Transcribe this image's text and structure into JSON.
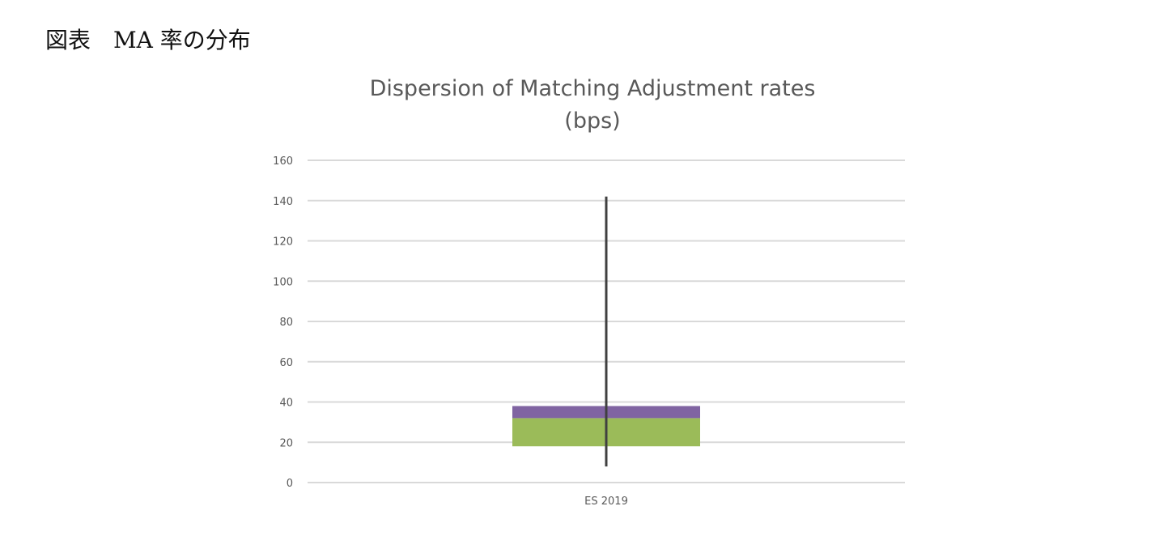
{
  "caption": "図表　MA 率の分布",
  "chart_data": {
    "type": "box",
    "title_line1": "Dispersion of Matching Adjustment rates",
    "title_line2": "(bps)",
    "categories": [
      "ES 2019"
    ],
    "ylim": [
      0,
      160
    ],
    "yticks": [
      0,
      20,
      40,
      60,
      80,
      100,
      120,
      140,
      160
    ],
    "grid": true,
    "legend": "none",
    "boxes": [
      {
        "category": "ES 2019",
        "min": 8,
        "q1": 18,
        "median": 32,
        "q3": 38,
        "max": 142
      }
    ],
    "colors": {
      "lower_box": "#9bbb59",
      "upper_box": "#8064a2",
      "whisker": "#404040",
      "grid": "#d9d9d9",
      "text": "#595959"
    }
  }
}
